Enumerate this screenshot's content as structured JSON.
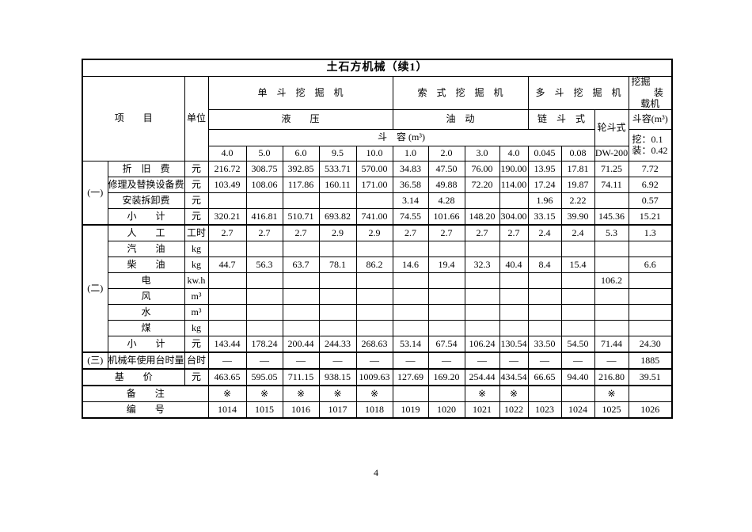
{
  "page": {
    "number": "4"
  },
  "table": {
    "title": "土石方机械（续1）",
    "header": {
      "item": "项　　目",
      "unit": "单位",
      "group1": "单　斗　挖　掘　机",
      "group2": "索　式　挖　掘　机",
      "group3": "多　斗　挖　掘　机",
      "group4_line1": "挖掘",
      "group4_line2": "装",
      "group4_line3": "载机",
      "sub1": "液　　压",
      "sub2": "油　动",
      "sub3": "链　斗　式",
      "sub4": "轮斗式",
      "sub5": "斗容(m³)",
      "capacity_row": "斗　容 (m³)",
      "loader_cap_line1": "挖：0.1",
      "loader_cap_line2": "装：0.42",
      "capacities": [
        "4.0",
        "5.0",
        "6.0",
        "9.5",
        "10.0",
        "1.0",
        "2.0",
        "3.0",
        "4.0",
        "0.045",
        "0.08",
        "DW-200"
      ]
    },
    "rows": [
      {
        "section": "(一)",
        "section_span": 4,
        "label": "折　旧　费",
        "unit": "元",
        "values": [
          "216.72",
          "308.75",
          "392.85",
          "533.71",
          "570.00",
          "34.83",
          "47.50",
          "76.00",
          "190.00",
          "13.95",
          "17.81",
          "71.25",
          "7.72"
        ]
      },
      {
        "label": "修理及替换设备费",
        "unit": "元",
        "values": [
          "103.49",
          "108.06",
          "117.86",
          "160.11",
          "171.00",
          "36.58",
          "49.88",
          "72.20",
          "114.00",
          "17.24",
          "19.87",
          "74.11",
          "6.92"
        ]
      },
      {
        "label": "安装拆卸费",
        "unit": "元",
        "values": [
          "",
          "",
          "",
          "",
          "",
          "3.14",
          "4.28",
          "",
          "",
          "1.96",
          "2.22",
          "",
          "0.57"
        ]
      },
      {
        "label": "小　　计",
        "unit": "元",
        "values": [
          "320.21",
          "416.81",
          "510.71",
          "693.82",
          "741.00",
          "74.55",
          "101.66",
          "148.20",
          "304.00",
          "33.15",
          "39.90",
          "145.36",
          "15.21"
        ]
      },
      {
        "section": "(二)",
        "section_span": 8,
        "label": "人　　工",
        "unit": "工时",
        "values": [
          "2.7",
          "2.7",
          "2.7",
          "2.9",
          "2.9",
          "2.7",
          "2.7",
          "2.7",
          "2.7",
          "2.4",
          "2.4",
          "5.3",
          "1.3"
        ]
      },
      {
        "label": "汽　　油",
        "unit": "kg",
        "values": [
          "",
          "",
          "",
          "",
          "",
          "",
          "",
          "",
          "",
          "",
          "",
          "",
          ""
        ]
      },
      {
        "label": "柴　　油",
        "unit": "kg",
        "values": [
          "44.7",
          "56.3",
          "63.7",
          "78.1",
          "86.2",
          "14.6",
          "19.4",
          "32.3",
          "40.4",
          "8.4",
          "15.4",
          "",
          "6.6"
        ]
      },
      {
        "label": "电",
        "unit": "kw.h",
        "values": [
          "",
          "",
          "",
          "",
          "",
          "",
          "",
          "",
          "",
          "",
          "",
          "106.2",
          ""
        ]
      },
      {
        "label": "风",
        "unit": "m³",
        "values": [
          "",
          "",
          "",
          "",
          "",
          "",
          "",
          "",
          "",
          "",
          "",
          "",
          ""
        ]
      },
      {
        "label": "水",
        "unit": "m³",
        "values": [
          "",
          "",
          "",
          "",
          "",
          "",
          "",
          "",
          "",
          "",
          "",
          "",
          ""
        ]
      },
      {
        "label": "煤",
        "unit": "kg",
        "values": [
          "",
          "",
          "",
          "",
          "",
          "",
          "",
          "",
          "",
          "",
          "",
          "",
          ""
        ]
      },
      {
        "label": "小　　计",
        "unit": "元",
        "values": [
          "143.44",
          "178.24",
          "200.44",
          "244.33",
          "268.63",
          "53.14",
          "67.54",
          "106.24",
          "130.54",
          "33.50",
          "54.50",
          "71.44",
          "24.30"
        ]
      },
      {
        "section": "(三)",
        "section_span": 1,
        "label": "机械年使用台时量",
        "unit": "台时",
        "values": [
          "—",
          "—",
          "—",
          "—",
          "—",
          "—",
          "—",
          "—",
          "—",
          "—",
          "—",
          "—",
          "1885"
        ]
      },
      {
        "label": "基　　价",
        "label_span": 2,
        "unit": "元",
        "values": [
          "463.65",
          "595.05",
          "711.15",
          "938.15",
          "1009.63",
          "127.69",
          "169.20",
          "254.44",
          "434.54",
          "66.65",
          "94.40",
          "216.80",
          "39.51"
        ]
      },
      {
        "label": "备　　注",
        "label_span": 3,
        "values": [
          "※",
          "※",
          "※",
          "※",
          "※",
          "",
          "",
          "※",
          "※",
          "",
          "",
          "※",
          ""
        ]
      },
      {
        "label": "编　　号",
        "label_span": 3,
        "values": [
          "1014",
          "1015",
          "1016",
          "1017",
          "1018",
          "1019",
          "1020",
          "1021",
          "1022",
          "1023",
          "1024",
          "1025",
          "1026"
        ]
      }
    ]
  }
}
